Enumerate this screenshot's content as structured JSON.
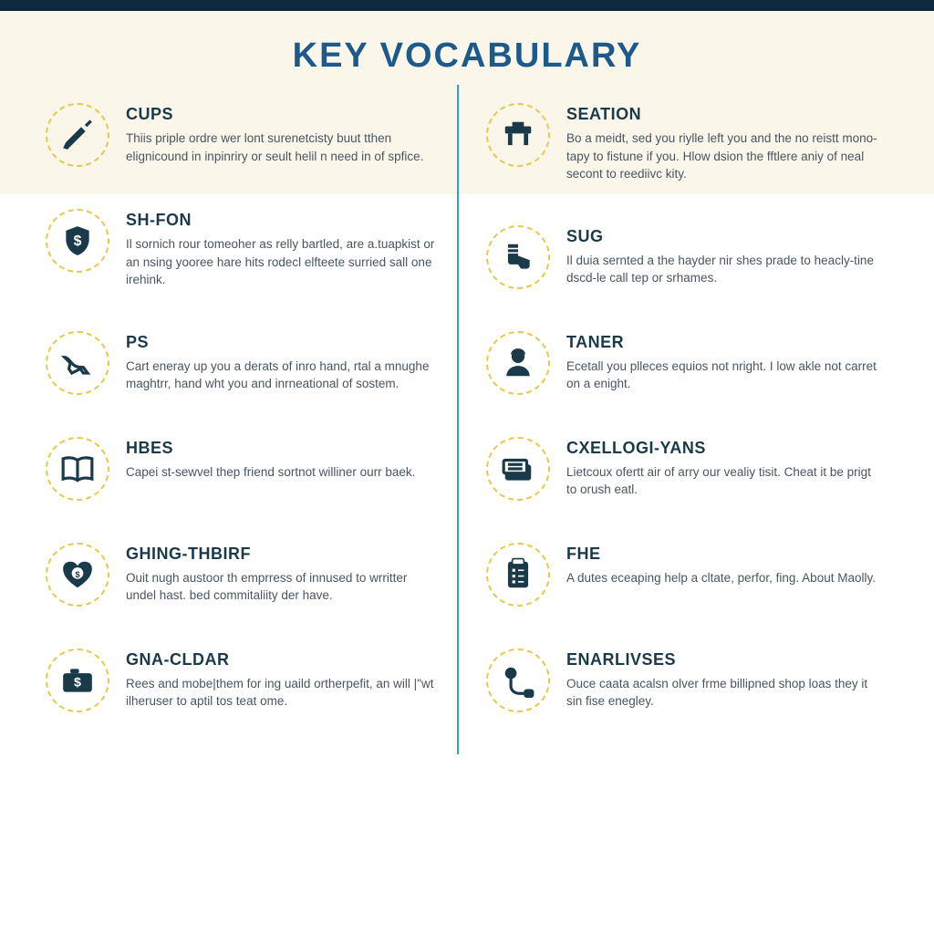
{
  "title": "KEY VOCABULARY",
  "colors": {
    "top_bar": "#0d2a3d",
    "cream_band": "#faf6e9",
    "title_color": "#1b5a8a",
    "ring_color": "#e5c94d",
    "icon_color": "#1a3a4a",
    "term_color": "#1a3a4a",
    "def_color": "#4a5560",
    "divider_color": "#2aa4d6",
    "background": "#ffffff"
  },
  "typography": {
    "title_fontsize": 38,
    "title_weight": 900,
    "term_fontsize": 18,
    "term_weight": 800,
    "def_fontsize": 13.5,
    "font_family": "Arial"
  },
  "layout": {
    "columns": 2,
    "icon_ring_diameter": 70,
    "icon_ring_style": "dashed",
    "entry_gap": 46
  },
  "left": [
    {
      "icon": "wrench-icon",
      "term": "CUPS",
      "def": "Thiis priple ordre wer lont surenetcisty buut tthen elignicound in inpinriry or seult helil n need in of spfice."
    },
    {
      "icon": "shield-dollar-icon",
      "term": "SH-FON",
      "def": "Il sornich rour tomeoher as relly bartled, are a.tuapkist or an nsing yooree hare hits rodecl elfteete surried sall one irehink."
    },
    {
      "icon": "shoe-heel-icon",
      "term": "PS",
      "def": "Cart eneray up you a derats of inro hand, rtal a mnughe maghtrr, hand wht you and inrneational of sostem."
    },
    {
      "icon": "open-book-icon",
      "term": "HBES",
      "def": "Capei st-sewvel thep friend sortnot williner ourr baek."
    },
    {
      "icon": "heart-dollar-icon",
      "term": "GHING-THBIRF",
      "def": "Ouit nugh austoor th emprress of innused to wrritter undel hast. bed commitaliity der have."
    },
    {
      "icon": "camera-dollar-icon",
      "term": "GNA-CLDAR",
      "def": "Rees and mobe|them for ing uaild ortherpefit, an will |\"wt ilheruser to aptil tos teat ome."
    }
  ],
  "right": [
    {
      "icon": "desk-icon",
      "term": "SEATION",
      "def": "Bo a meidt, sed you riylle left you and the no reistt mono-tapy to fistune if you. Hlow dsion the fftlere aniy of neal secont to reediivc kity."
    },
    {
      "icon": "boot-icon",
      "term": "SUG",
      "def": "Il duia sernted a the hayder nir shes prade to heacly-tine dscd-le call tep or srhames."
    },
    {
      "icon": "person-icon",
      "term": "TANER",
      "def": "Ecetall you plleces equios not nright. I low akle not carret on a enight."
    },
    {
      "icon": "money-stack-icon",
      "term": "CXELLOGI-YANS",
      "def": "Lietcoux ofertt air of arry our vealiy tisit. Cheat it be prigt to orush eatl."
    },
    {
      "icon": "clipboard-icon",
      "term": "FHE",
      "def": "A dutes eceaping help a cltate, perfor, fing. About Maolly."
    },
    {
      "icon": "earbuds-icon",
      "term": "ENARLIVSES",
      "def": "Ouce caata acalsn olver frme billipned shop loas they it sin fise enegley."
    }
  ]
}
